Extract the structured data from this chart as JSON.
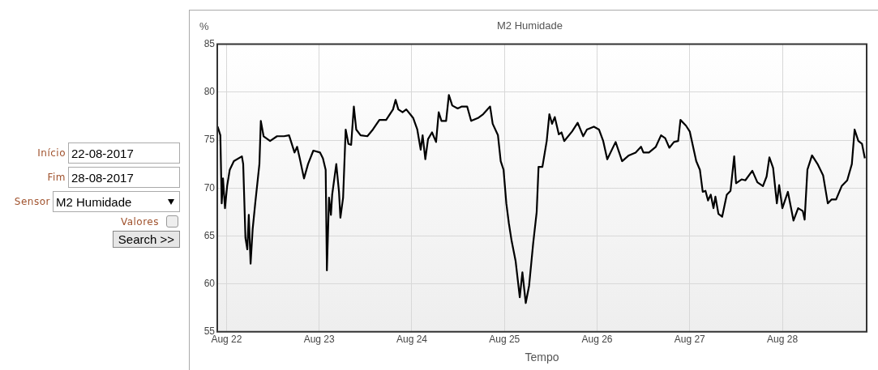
{
  "chart_data": {
    "type": "line",
    "title": "M2 Humidade",
    "ylabel": "%",
    "xlabel": "Tempo",
    "xlim": [
      "2017-08-21T21:36",
      "2017-08-28T21:50"
    ],
    "xticks": [
      {
        "value": "2017-08-22",
        "label": "Aug 22"
      },
      {
        "value": "2017-08-23",
        "label": "Aug 23"
      },
      {
        "value": "2017-08-24",
        "label": "Aug 24"
      },
      {
        "value": "2017-08-25",
        "label": "Aug 25"
      },
      {
        "value": "2017-08-26",
        "label": "Aug 26"
      },
      {
        "value": "2017-08-27",
        "label": "Aug 27"
      },
      {
        "value": "2017-08-28",
        "label": "Aug 28"
      }
    ],
    "ylim": [
      55,
      85
    ],
    "yticks": [
      55,
      60,
      65,
      70,
      75,
      80,
      85
    ],
    "grid": true,
    "legend": false,
    "marker": "none",
    "line_style": "solid",
    "annotations": [
      "Início",
      "22-08-2017",
      "Fim",
      "28-08-2017",
      "Sensor",
      "M2 Humidade",
      "Valores",
      "Search >>"
    ],
    "series": [
      {
        "color": "#000000",
        "x": [
          "2017-08-21T21:42",
          "2017-08-21T22:24",
          "2017-08-21T22:45",
          "2017-08-21T23:05",
          "2017-08-21T23:36",
          "2017-08-22T00:09",
          "2017-08-22T00:50",
          "2017-08-22T01:54",
          "2017-08-22T03:59",
          "2017-08-22T04:19",
          "2017-08-22T04:54",
          "2017-08-22T05:23",
          "2017-08-22T05:46",
          "2017-08-22T06:14",
          "2017-08-22T06:46",
          "2017-08-22T07:26",
          "2017-08-22T08:31",
          "2017-08-22T08:53",
          "2017-08-22T09:36",
          "2017-08-22T11:17",
          "2017-08-22T13:05",
          "2017-08-22T14:53",
          "2017-08-22T16:12",
          "2017-08-22T17:37",
          "2017-08-22T18:17",
          "2017-08-22T18:58",
          "2017-08-22T20:04",
          "2017-08-22T21:07",
          "2017-08-22T22:29",
          "2017-08-23T00:14",
          "2017-08-23T00:58",
          "2017-08-23T01:41",
          "2017-08-23T02:00",
          "2017-08-23T02:33",
          "2017-08-23T03:03",
          "2017-08-23T03:22",
          "2017-08-23T04:26",
          "2017-08-23T05:08",
          "2017-08-23T05:30",
          "2017-08-23T06:12",
          "2017-08-23T06:52",
          "2017-08-23T07:35",
          "2017-08-23T08:17",
          "2017-08-23T08:59",
          "2017-08-23T09:36",
          "2017-08-23T10:44",
          "2017-08-23T12:29",
          "2017-08-23T13:55",
          "2017-08-23T15:36",
          "2017-08-23T17:21",
          "2017-08-23T19:08",
          "2017-08-23T19:48",
          "2017-08-23T20:30",
          "2017-08-23T21:36",
          "2017-08-23T22:34",
          "2017-08-24T00:22",
          "2017-08-24T01:25",
          "2017-08-24T02:18",
          "2017-08-24T02:48",
          "2017-08-24T03:30",
          "2017-08-24T04:12",
          "2017-08-24T05:14",
          "2017-08-24T06:17",
          "2017-08-24T06:58",
          "2017-08-24T07:41",
          "2017-08-24T08:53",
          "2017-08-24T09:36",
          "2017-08-24T10:29",
          "2017-08-24T11:53",
          "2017-08-24T12:58",
          "2017-08-24T14:20",
          "2017-08-24T15:22",
          "2017-08-24T17:08",
          "2017-08-24T18:29",
          "2017-08-24T20:17",
          "2017-08-24T20:57",
          "2017-08-24T22:19",
          "2017-08-24T23:02",
          "2017-08-24T23:46",
          "2017-08-25T00:29",
          "2017-08-25T01:09",
          "2017-08-25T01:51",
          "2017-08-25T02:53",
          "2017-08-25T03:58",
          "2017-08-25T04:39",
          "2017-08-25T05:31",
          "2017-08-25T06:23",
          "2017-08-25T07:26",
          "2017-08-25T08:21",
          "2017-08-25T08:50",
          "2017-08-25T09:50",
          "2017-08-25T10:57",
          "2017-08-25T11:38",
          "2017-08-25T12:20",
          "2017-08-25T13:02",
          "2017-08-25T14:05",
          "2017-08-25T14:47",
          "2017-08-25T15:29",
          "2017-08-25T17:31",
          "2017-08-25T18:58",
          "2017-08-25T20:24",
          "2017-08-25T21:22",
          "2017-08-25T23:10",
          "2017-08-26T00:29",
          "2017-08-26T01:35",
          "2017-08-26T02:38",
          "2017-08-26T04:48",
          "2017-08-26T06:29",
          "2017-08-26T08:14",
          "2017-08-26T09:59",
          "2017-08-26T11:23",
          "2017-08-26T12:00",
          "2017-08-26T13:26",
          "2017-08-26T15:13",
          "2017-08-26T16:34",
          "2017-08-26T17:38",
          "2017-08-26T18:43",
          "2017-08-26T19:55",
          "2017-08-26T21:00",
          "2017-08-26T21:36",
          "2017-08-26T23:02",
          "2017-08-27T00:00",
          "2017-08-27T01:41",
          "2017-08-27T02:38",
          "2017-08-27T03:22",
          "2017-08-27T04:05",
          "2017-08-27T04:44",
          "2017-08-27T05:27",
          "2017-08-27T06:09",
          "2017-08-27T06:39",
          "2017-08-27T07:26",
          "2017-08-27T08:24",
          "2017-08-27T09:36",
          "2017-08-27T10:34",
          "2017-08-27T11:31",
          "2017-08-27T12:00",
          "2017-08-27T13:26",
          "2017-08-27T14:24",
          "2017-08-27T16:13",
          "2017-08-27T17:31",
          "2017-08-27T18:58",
          "2017-08-27T19:55",
          "2017-08-27T20:38",
          "2017-08-27T21:36",
          "2017-08-27T22:34",
          "2017-08-27T23:10",
          "2017-08-28T00:00",
          "2017-08-28T01:26",
          "2017-08-28T02:53",
          "2017-08-28T04:05",
          "2017-08-28T05:17",
          "2017-08-28T05:46",
          "2017-08-28T06:29",
          "2017-08-28T07:41",
          "2017-08-28T09:07",
          "2017-08-28T10:34",
          "2017-08-28T11:46",
          "2017-08-28T12:43",
          "2017-08-28T13:55",
          "2017-08-28T15:22",
          "2017-08-28T16:48",
          "2017-08-28T18:00",
          "2017-08-28T18:43",
          "2017-08-28T19:41",
          "2017-08-28T20:38",
          "2017-08-28T21:22"
        ],
        "values": [
          76.4,
          75.5,
          68.4,
          71.0,
          67.9,
          70.2,
          71.9,
          72.8,
          73.3,
          72.5,
          64.8,
          63.6,
          67.2,
          62.1,
          65.7,
          68.4,
          72.5,
          77.0,
          75.4,
          74.9,
          75.4,
          75.4,
          75.5,
          73.7,
          74.3,
          73.1,
          71.0,
          72.5,
          73.9,
          73.7,
          73.1,
          71.9,
          61.4,
          69.0,
          67.2,
          69.3,
          72.5,
          69.6,
          66.9,
          69.0,
          76.1,
          74.6,
          74.5,
          78.5,
          76.1,
          75.5,
          75.4,
          76.1,
          77.1,
          77.1,
          78.2,
          79.2,
          78.2,
          77.9,
          78.2,
          77.3,
          76.1,
          74.0,
          75.5,
          73.0,
          75.1,
          75.8,
          74.8,
          77.9,
          77.0,
          77.0,
          79.7,
          78.6,
          78.3,
          78.5,
          78.5,
          77.0,
          77.3,
          77.7,
          78.5,
          76.7,
          75.5,
          72.8,
          71.9,
          68.4,
          66.3,
          64.5,
          62.4,
          58.6,
          61.2,
          58.0,
          59.8,
          64.2,
          67.5,
          72.2,
          72.2,
          74.9,
          77.7,
          76.7,
          77.4,
          75.6,
          75.8,
          74.9,
          75.9,
          76.8,
          75.4,
          76.1,
          76.4,
          76.1,
          74.9,
          73.0,
          74.8,
          72.8,
          73.4,
          73.7,
          74.3,
          73.7,
          73.7,
          74.3,
          75.5,
          75.2,
          74.2,
          74.8,
          74.9,
          77.1,
          76.5,
          75.9,
          72.8,
          71.9,
          69.6,
          69.7,
          68.7,
          69.3,
          67.9,
          69.1,
          67.3,
          67.0,
          69.3,
          69.7,
          73.3,
          70.5,
          70.9,
          70.8,
          71.8,
          70.6,
          70.2,
          71.2,
          73.2,
          72.1,
          68.4,
          70.3,
          67.9,
          69.6,
          66.6,
          67.9,
          67.6,
          66.7,
          71.9,
          73.4,
          72.5,
          71.3,
          68.4,
          68.8,
          68.8,
          70.2,
          70.8,
          72.5,
          76.1,
          74.9,
          74.6,
          73.1
        ]
      }
    ]
  }
}
